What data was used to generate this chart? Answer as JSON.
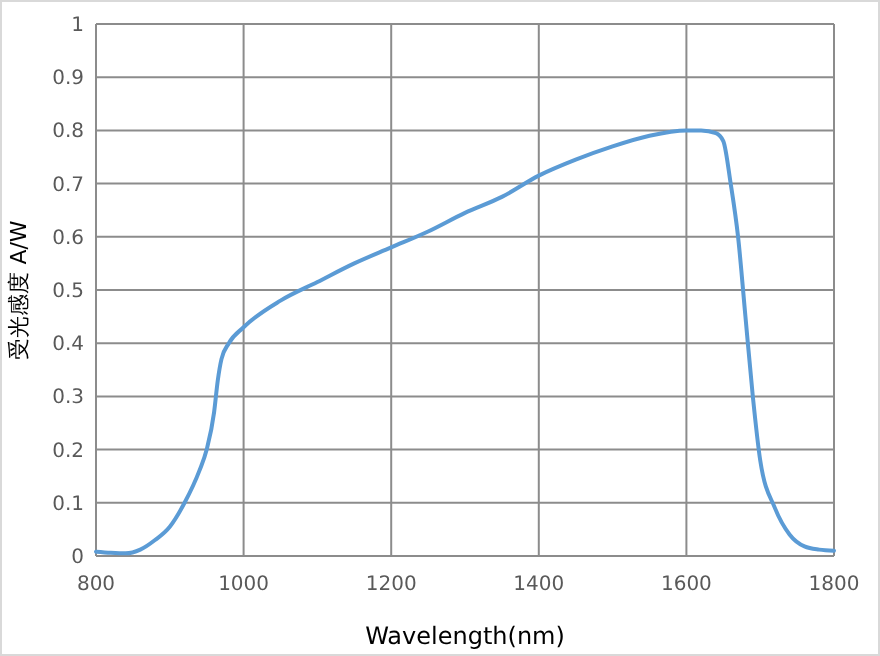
{
  "chart_data": {
    "type": "line",
    "xlabel": "Wavelength(nm)",
    "ylabel": "受光感度 A/W",
    "x": [
      800,
      820,
      840,
      860,
      880,
      900,
      920,
      940,
      950,
      960,
      965,
      970,
      980,
      1000,
      1050,
      1100,
      1150,
      1200,
      1250,
      1300,
      1350,
      1400,
      1450,
      1500,
      1550,
      1600,
      1620,
      1640,
      1650,
      1660,
      1670,
      1680,
      1690,
      1700,
      1720,
      1740,
      1760,
      1780,
      1800
    ],
    "series": [
      {
        "color": "#5b9bd5",
        "values": [
          0.008,
          0.006,
          0.005,
          0.012,
          0.03,
          0.055,
          0.1,
          0.16,
          0.2,
          0.27,
          0.33,
          0.37,
          0.4,
          0.43,
          0.48,
          0.515,
          0.55,
          0.58,
          0.61,
          0.645,
          0.675,
          0.715,
          0.745,
          0.77,
          0.79,
          0.8,
          0.8,
          0.795,
          0.78,
          0.7,
          0.6,
          0.45,
          0.3,
          0.18,
          0.09,
          0.04,
          0.018,
          0.012,
          0.01
        ]
      }
    ],
    "xlim": [
      800,
      1800
    ],
    "xticks": [
      800,
      1000,
      1200,
      1400,
      1600,
      1800
    ],
    "ylim": [
      0,
      1
    ],
    "yticks": [
      0,
      0.1,
      0.2,
      0.3,
      0.4,
      0.5,
      0.6,
      0.7,
      0.8,
      0.9,
      1
    ],
    "grid": true,
    "marker": "none",
    "line_style": "solid"
  }
}
